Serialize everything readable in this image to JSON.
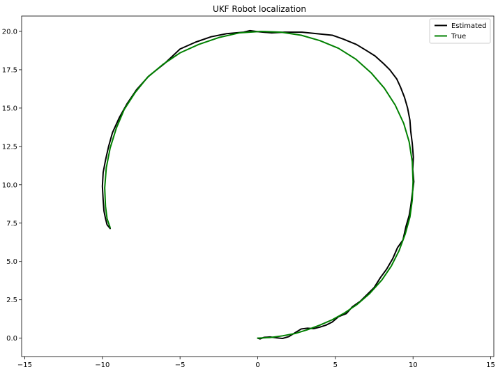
{
  "chart_data": {
    "type": "line",
    "title": "UKF Robot localization",
    "xlabel": "",
    "ylabel": "",
    "xlim": [
      -15.2,
      15.2
    ],
    "ylim": [
      -1.2,
      21.0
    ],
    "xticks": [
      -15,
      -10,
      -5,
      0,
      5,
      10,
      15
    ],
    "xtick_labels": [
      "−15",
      "−10",
      "−5",
      "0",
      "5",
      "10",
      "15"
    ],
    "yticks": [
      0.0,
      2.5,
      5.0,
      7.5,
      10.0,
      12.5,
      15.0,
      17.5,
      20.0
    ],
    "ytick_labels": [
      "0.0",
      "2.5",
      "5.0",
      "7.5",
      "10.0",
      "12.5",
      "15.0",
      "17.5",
      "20.0"
    ],
    "grid": false,
    "legend_position": "top-right",
    "series": [
      {
        "name": "Estimated",
        "color": "#000000",
        "x": [
          0.0,
          0.15,
          0.4,
          0.8,
          1.2,
          1.6,
          2.0,
          2.4,
          2.8,
          3.2,
          3.6,
          4.0,
          4.4,
          4.8,
          5.2,
          5.7,
          6.1,
          6.6,
          7.0,
          7.5,
          7.9,
          8.3,
          8.7,
          9.0,
          9.35,
          9.55,
          9.75,
          9.85,
          9.95,
          10.05,
          9.98,
          10.02,
          9.95,
          9.85,
          9.8,
          9.65,
          9.45,
          9.2,
          8.95,
          8.5,
          8.1,
          7.55,
          7.0,
          6.35,
          5.5,
          4.8,
          3.8,
          2.85,
          1.7,
          0.9,
          0.0,
          -0.5,
          -0.9,
          -2.0,
          -3.0,
          -4.0,
          -5.0,
          -6.0,
          -7.0,
          -7.8,
          -8.4,
          -8.9,
          -9.35,
          -9.6,
          -9.8,
          -9.95,
          -10.0,
          -9.95,
          -9.9,
          -9.8,
          -9.7,
          -9.5
        ],
        "y": [
          0.0,
          -0.05,
          0.05,
          0.08,
          0.02,
          -0.02,
          0.1,
          0.35,
          0.6,
          0.65,
          0.62,
          0.72,
          0.85,
          1.05,
          1.4,
          1.6,
          2.05,
          2.4,
          2.8,
          3.3,
          3.95,
          4.5,
          5.2,
          5.9,
          6.4,
          7.3,
          8.0,
          8.6,
          9.4,
          10.2,
          11.0,
          11.8,
          12.7,
          13.5,
          14.2,
          15.0,
          15.7,
          16.35,
          16.9,
          17.5,
          17.9,
          18.4,
          18.75,
          19.15,
          19.5,
          19.75,
          19.85,
          19.95,
          19.95,
          19.9,
          19.98,
          20.05,
          19.95,
          19.85,
          19.65,
          19.3,
          18.85,
          17.9,
          17.1,
          16.2,
          15.3,
          14.4,
          13.4,
          12.5,
          11.6,
          10.8,
          9.9,
          9.0,
          8.3,
          7.8,
          7.4,
          7.15
        ]
      },
      {
        "name": "True",
        "color": "#008000",
        "x": [
          0.0,
          0.8,
          1.6,
          2.4,
          3.2,
          4.0,
          4.8,
          5.6,
          6.4,
          7.2,
          8.0,
          8.6,
          9.1,
          9.5,
          9.8,
          9.95,
          10.0,
          9.95,
          9.75,
          9.4,
          8.85,
          8.15,
          7.3,
          6.3,
          5.2,
          4.0,
          2.8,
          1.5,
          0.2,
          -1.2,
          -2.5,
          -3.8,
          -5.0,
          -6.1,
          -7.1,
          -7.9,
          -8.6,
          -9.1,
          -9.5,
          -9.75,
          -9.85,
          -9.8,
          -9.7,
          -9.5
        ],
        "y": [
          0.0,
          0.04,
          0.15,
          0.3,
          0.55,
          0.85,
          1.2,
          1.65,
          2.2,
          2.9,
          3.8,
          4.7,
          5.7,
          6.8,
          7.9,
          9.0,
          10.2,
          11.5,
          12.8,
          14.0,
          15.2,
          16.3,
          17.3,
          18.2,
          18.9,
          19.4,
          19.75,
          19.95,
          20.0,
          19.9,
          19.6,
          19.15,
          18.6,
          17.85,
          17.0,
          16.0,
          14.9,
          13.7,
          12.4,
          11.1,
          9.8,
          8.6,
          7.8,
          7.2
        ]
      }
    ]
  }
}
